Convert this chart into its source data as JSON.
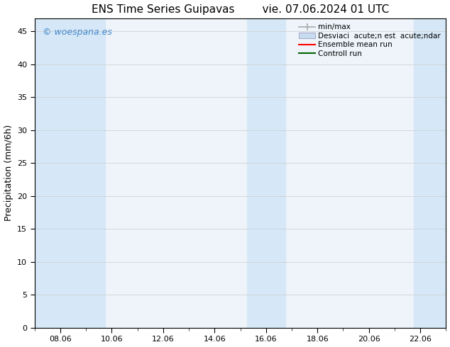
{
  "title_left": "ENS Time Series Guipavas",
  "title_right": "vie. 07.06.2024 01 UTC",
  "ylabel": "Precipitation (mm/6h)",
  "ylim": [
    0,
    47
  ],
  "yticks": [
    0,
    5,
    10,
    15,
    20,
    25,
    30,
    35,
    40,
    45
  ],
  "xtick_labels": [
    "08.06",
    "10.06",
    "12.06",
    "14.06",
    "16.06",
    "18.06",
    "20.06",
    "22.06"
  ],
  "xtick_positions": [
    8,
    10,
    12,
    14,
    16,
    18,
    20,
    22
  ],
  "xlim": [
    7,
    23
  ],
  "background_color": "#ffffff",
  "plot_bg_color": "#eef4fa",
  "watermark_text": "© woespana.es",
  "watermark_color": "#4488cc",
  "shaded_regions": [
    {
      "xmin": 7.0,
      "xmax": 9.75,
      "color": "#d6e8f7"
    },
    {
      "xmin": 15.25,
      "xmax": 16.75,
      "color": "#d6e8f7"
    },
    {
      "xmin": 21.75,
      "xmax": 23.0,
      "color": "#d6e8f7"
    }
  ],
  "legend_entries": [
    {
      "label": "min/max",
      "type": "errorbar",
      "color": "#aaaaaa"
    },
    {
      "label": "Desviaci  acute;n est  acute;ndar",
      "type": "patch",
      "facecolor": "#c8dcef",
      "edgecolor": "#aaaacc"
    },
    {
      "label": "Ensemble mean run",
      "type": "line",
      "color": "#ff0000"
    },
    {
      "label": "Controll run",
      "type": "line",
      "color": "#006600"
    }
  ],
  "grid_color": "#cccccc",
  "spine_color": "#000000",
  "title_fontsize": 11,
  "tick_fontsize": 8,
  "ylabel_fontsize": 9
}
